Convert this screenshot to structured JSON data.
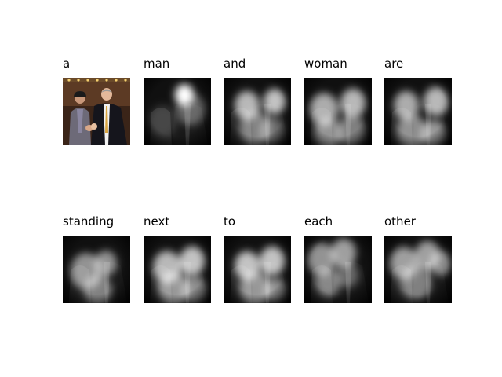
{
  "caption_words": [
    "a",
    "man",
    "and",
    "woman",
    "are",
    "standing",
    "next",
    "to",
    "each",
    "other"
  ],
  "panels": [
    {
      "word": "a",
      "image": "original-photo"
    },
    {
      "word": "man",
      "image": "attention-map"
    },
    {
      "word": "and",
      "image": "attention-map"
    },
    {
      "word": "woman",
      "image": "attention-map"
    },
    {
      "word": "are",
      "image": "attention-map"
    },
    {
      "word": "standing",
      "image": "attention-map"
    },
    {
      "word": "next",
      "image": "attention-map"
    },
    {
      "word": "to",
      "image": "attention-map"
    },
    {
      "word": "each",
      "image": "attention-map"
    },
    {
      "word": "other",
      "image": "attention-map"
    }
  ]
}
